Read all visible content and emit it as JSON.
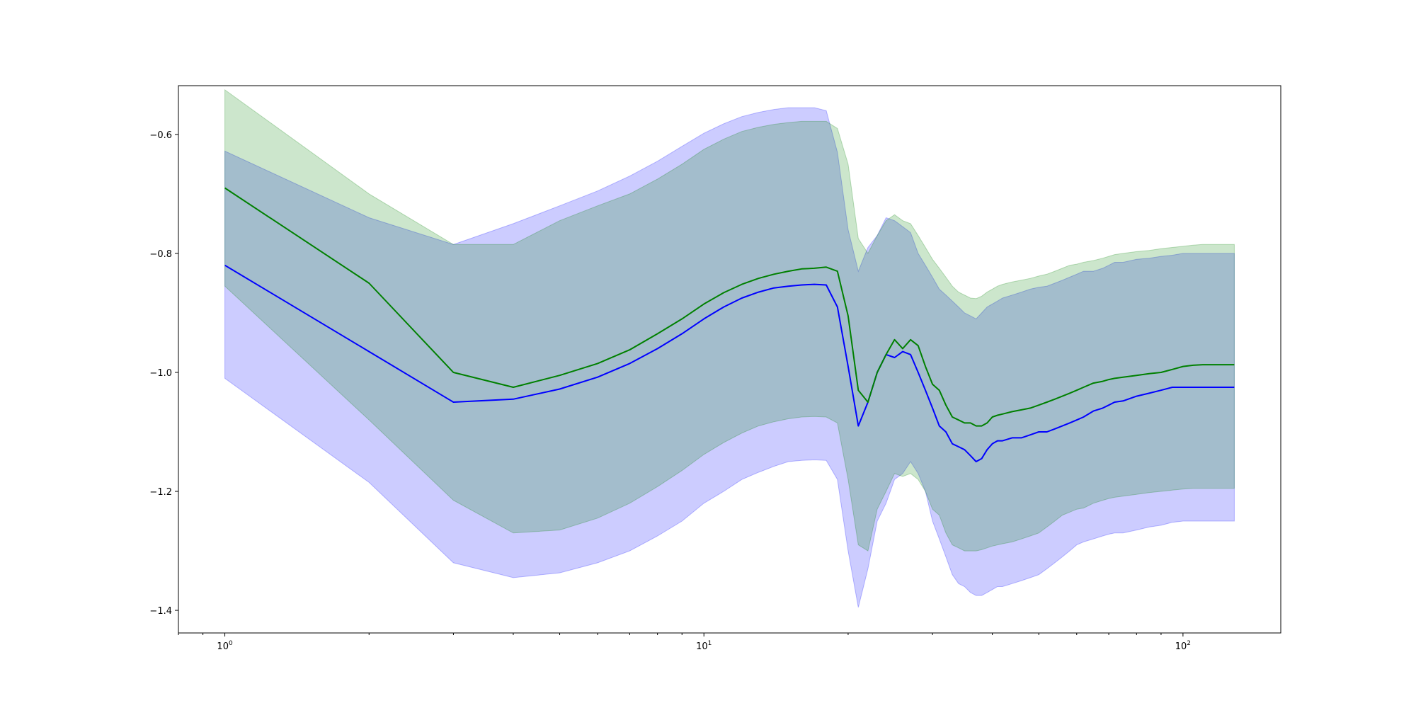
{
  "chart_data": {
    "type": "line",
    "title": "",
    "xlabel": "",
    "ylabel": "",
    "xscale": "log",
    "xlim": [
      0.8,
      160
    ],
    "ylim": [
      -1.438,
      -0.518
    ],
    "grid": false,
    "legend": "none",
    "xticks": [
      {
        "value": 1,
        "base": "10",
        "exp": "0"
      },
      {
        "value": 10,
        "base": "10",
        "exp": "1"
      },
      {
        "value": 100,
        "base": "10",
        "exp": "2"
      }
    ],
    "yticks": [
      {
        "value": -0.6,
        "label": "−0.6"
      },
      {
        "value": -0.8,
        "label": "−0.8"
      },
      {
        "value": -1.0,
        "label": "−1.0"
      },
      {
        "value": -1.2,
        "label": "−1.2"
      },
      {
        "value": -1.4,
        "label": "−1.4"
      }
    ],
    "series": [
      {
        "color": "#0000ff",
        "band_color": "#0000ff",
        "band_opacity": 0.2,
        "x": [
          1,
          2,
          3,
          4,
          5,
          6,
          7,
          8,
          9,
          10,
          11,
          12,
          13,
          14,
          15,
          16,
          17,
          18,
          19,
          20,
          21,
          22,
          23,
          24,
          25,
          26,
          27,
          28,
          29,
          30,
          31,
          32,
          33,
          34,
          35,
          36,
          37,
          38,
          39,
          40,
          41,
          42,
          44,
          46,
          48,
          50,
          52,
          54,
          56,
          58,
          60,
          62,
          65,
          68,
          70,
          72,
          75,
          80,
          85,
          90,
          95,
          100,
          105,
          110,
          115,
          120,
          128
        ],
        "y": [
          -0.82,
          -0.965,
          -1.05,
          -1.045,
          -1.028,
          -1.008,
          -0.985,
          -0.96,
          -0.935,
          -0.91,
          -0.89,
          -0.875,
          -0.865,
          -0.858,
          -0.855,
          -0.853,
          -0.852,
          -0.853,
          -0.89,
          -0.99,
          -1.09,
          -1.05,
          -1.0,
          -0.97,
          -0.975,
          -0.965,
          -0.97,
          -1.0,
          -1.03,
          -1.06,
          -1.09,
          -1.1,
          -1.12,
          -1.125,
          -1.13,
          -1.14,
          -1.15,
          -1.145,
          -1.13,
          -1.12,
          -1.115,
          -1.115,
          -1.11,
          -1.11,
          -1.105,
          -1.1,
          -1.1,
          -1.095,
          -1.09,
          -1.085,
          -1.08,
          -1.075,
          -1.065,
          -1.06,
          -1.055,
          -1.05,
          -1.048,
          -1.04,
          -1.035,
          -1.03,
          -1.025,
          -1.025,
          -1.025,
          -1.025,
          -1.025,
          -1.025,
          -1.025
        ],
        "lower": [
          -1.01,
          -1.185,
          -1.32,
          -1.345,
          -1.337,
          -1.32,
          -1.3,
          -1.275,
          -1.25,
          -1.22,
          -1.2,
          -1.18,
          -1.168,
          -1.158,
          -1.15,
          -1.148,
          -1.147,
          -1.148,
          -1.18,
          -1.3,
          -1.395,
          -1.33,
          -1.25,
          -1.22,
          -1.18,
          -1.17,
          -1.15,
          -1.17,
          -1.2,
          -1.25,
          -1.28,
          -1.31,
          -1.34,
          -1.355,
          -1.36,
          -1.37,
          -1.375,
          -1.375,
          -1.37,
          -1.365,
          -1.36,
          -1.36,
          -1.355,
          -1.35,
          -1.345,
          -1.34,
          -1.33,
          -1.32,
          -1.31,
          -1.3,
          -1.29,
          -1.285,
          -1.28,
          -1.275,
          -1.272,
          -1.27,
          -1.27,
          -1.265,
          -1.26,
          -1.257,
          -1.252,
          -1.25,
          -1.25,
          -1.25,
          -1.25,
          -1.25,
          -1.25
        ],
        "upper": [
          -0.628,
          -0.74,
          -0.785,
          -0.75,
          -0.72,
          -0.695,
          -0.67,
          -0.645,
          -0.62,
          -0.598,
          -0.582,
          -0.57,
          -0.563,
          -0.558,
          -0.555,
          -0.555,
          -0.555,
          -0.56,
          -0.63,
          -0.76,
          -0.83,
          -0.79,
          -0.77,
          -0.74,
          -0.745,
          -0.755,
          -0.765,
          -0.8,
          -0.82,
          -0.84,
          -0.86,
          -0.87,
          -0.88,
          -0.89,
          -0.9,
          -0.905,
          -0.91,
          -0.9,
          -0.89,
          -0.885,
          -0.88,
          -0.875,
          -0.87,
          -0.865,
          -0.86,
          -0.857,
          -0.855,
          -0.85,
          -0.845,
          -0.84,
          -0.835,
          -0.83,
          -0.83,
          -0.825,
          -0.82,
          -0.815,
          -0.815,
          -0.81,
          -0.808,
          -0.805,
          -0.803,
          -0.8,
          -0.8,
          -0.8,
          -0.8,
          -0.8,
          -0.8
        ]
      },
      {
        "color": "#008000",
        "band_color": "#008000",
        "band_opacity": 0.2,
        "x": [
          1,
          2,
          3,
          4,
          5,
          6,
          7,
          8,
          9,
          10,
          11,
          12,
          13,
          14,
          15,
          16,
          17,
          18,
          19,
          20,
          21,
          22,
          23,
          24,
          25,
          26,
          27,
          28,
          29,
          30,
          31,
          32,
          33,
          34,
          35,
          36,
          37,
          38,
          39,
          40,
          41,
          42,
          44,
          46,
          48,
          50,
          52,
          54,
          56,
          58,
          60,
          62,
          65,
          68,
          70,
          72,
          75,
          80,
          85,
          90,
          95,
          100,
          105,
          110,
          115,
          120,
          128
        ],
        "y": [
          -0.69,
          -0.85,
          -1.0,
          -1.025,
          -1.005,
          -0.985,
          -0.962,
          -0.935,
          -0.91,
          -0.885,
          -0.866,
          -0.852,
          -0.842,
          -0.835,
          -0.83,
          -0.826,
          -0.825,
          -0.823,
          -0.83,
          -0.905,
          -1.03,
          -1.05,
          -1.0,
          -0.97,
          -0.945,
          -0.96,
          -0.945,
          -0.955,
          -0.99,
          -1.02,
          -1.03,
          -1.055,
          -1.075,
          -1.08,
          -1.085,
          -1.085,
          -1.09,
          -1.09,
          -1.085,
          -1.075,
          -1.072,
          -1.07,
          -1.066,
          -1.063,
          -1.06,
          -1.055,
          -1.05,
          -1.045,
          -1.04,
          -1.035,
          -1.03,
          -1.025,
          -1.018,
          -1.015,
          -1.012,
          -1.01,
          -1.008,
          -1.005,
          -1.002,
          -1.0,
          -0.995,
          -0.99,
          -0.988,
          -0.987,
          -0.987,
          -0.987,
          -0.987
        ],
        "lower": [
          -0.855,
          -1.08,
          -1.215,
          -1.27,
          -1.265,
          -1.245,
          -1.22,
          -1.192,
          -1.165,
          -1.138,
          -1.118,
          -1.102,
          -1.09,
          -1.083,
          -1.078,
          -1.075,
          -1.074,
          -1.075,
          -1.085,
          -1.18,
          -1.29,
          -1.3,
          -1.23,
          -1.2,
          -1.17,
          -1.175,
          -1.17,
          -1.18,
          -1.2,
          -1.23,
          -1.24,
          -1.27,
          -1.29,
          -1.295,
          -1.3,
          -1.3,
          -1.3,
          -1.298,
          -1.295,
          -1.292,
          -1.29,
          -1.288,
          -1.285,
          -1.28,
          -1.275,
          -1.27,
          -1.26,
          -1.25,
          -1.24,
          -1.235,
          -1.23,
          -1.228,
          -1.22,
          -1.215,
          -1.212,
          -1.21,
          -1.208,
          -1.205,
          -1.202,
          -1.2,
          -1.198,
          -1.196,
          -1.195,
          -1.195,
          -1.195,
          -1.195,
          -1.195
        ],
        "upper": [
          -0.525,
          -0.7,
          -0.785,
          -0.785,
          -0.745,
          -0.72,
          -0.7,
          -0.675,
          -0.65,
          -0.625,
          -0.608,
          -0.595,
          -0.588,
          -0.583,
          -0.58,
          -0.578,
          -0.578,
          -0.578,
          -0.59,
          -0.65,
          -0.775,
          -0.8,
          -0.77,
          -0.745,
          -0.735,
          -0.745,
          -0.75,
          -0.77,
          -0.79,
          -0.81,
          -0.825,
          -0.84,
          -0.855,
          -0.865,
          -0.87,
          -0.875,
          -0.876,
          -0.872,
          -0.865,
          -0.86,
          -0.855,
          -0.852,
          -0.848,
          -0.845,
          -0.842,
          -0.838,
          -0.835,
          -0.83,
          -0.825,
          -0.82,
          -0.818,
          -0.815,
          -0.812,
          -0.808,
          -0.805,
          -0.802,
          -0.8,
          -0.797,
          -0.795,
          -0.792,
          -0.79,
          -0.788,
          -0.786,
          -0.785,
          -0.785,
          -0.785,
          -0.785
        ]
      }
    ]
  }
}
